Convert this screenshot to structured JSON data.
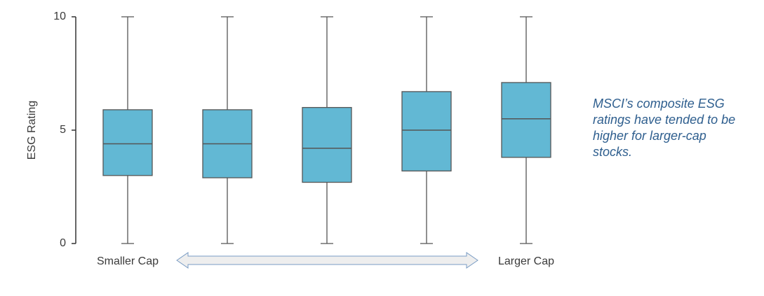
{
  "chart_data": {
    "type": "box",
    "y_label": "ESG Rating",
    "categories": [
      "Smaller Cap",
      null,
      null,
      null,
      "Larger Cap"
    ],
    "boxes": [
      {
        "min": 0,
        "q1": 3.0,
        "median": 4.4,
        "q3": 5.9,
        "max": 10
      },
      {
        "min": 0,
        "q1": 2.9,
        "median": 4.4,
        "q3": 5.9,
        "max": 10
      },
      {
        "min": 0,
        "q1": 2.7,
        "median": 4.2,
        "q3": 6.0,
        "max": 10
      },
      {
        "min": 0,
        "q1": 3.2,
        "median": 5.0,
        "q3": 6.7,
        "max": 10
      },
      {
        "min": 0,
        "q1": 3.8,
        "median": 5.5,
        "q3": 7.1,
        "max": 10
      }
    ],
    "color": "#62b8d4",
    "ylim": [
      0,
      10
    ],
    "yticks": [
      0,
      5,
      10
    ],
    "annotation": [
      "MSCI’s composite ESG",
      "ratings have tended to be",
      "higher for larger-cap",
      "stocks."
    ]
  }
}
